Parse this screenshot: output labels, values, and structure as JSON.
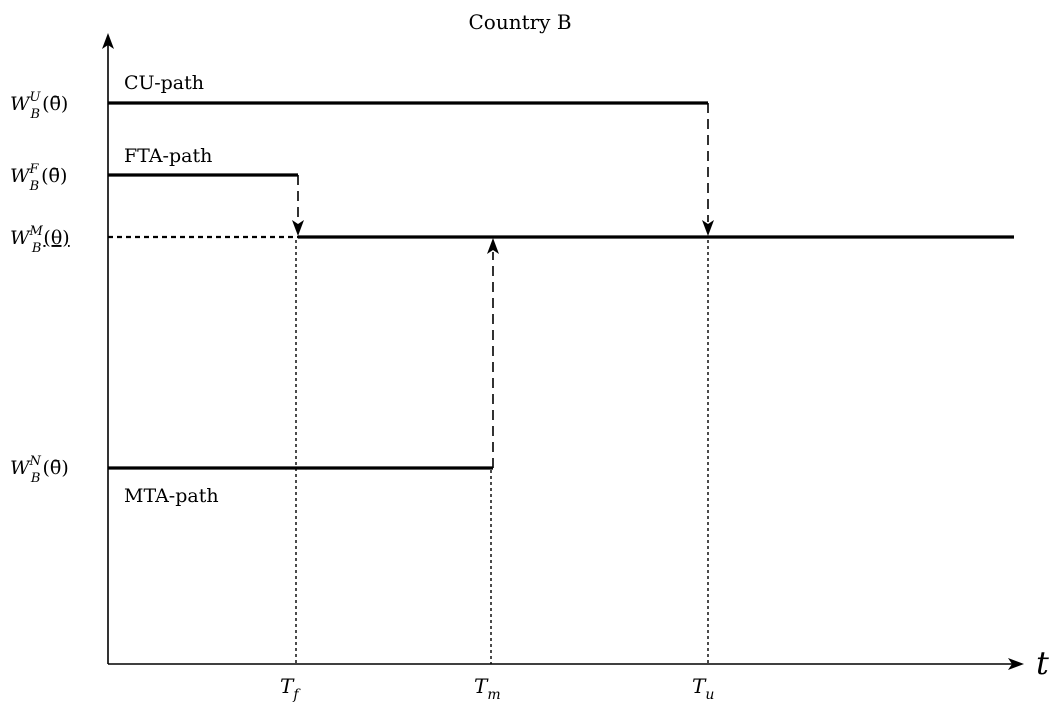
{
  "title": "Country B",
  "y_labels": [
    {
      "id": "u",
      "base": "W",
      "sub": "B",
      "sup": "U",
      "arg": "(θ̄)"
    },
    {
      "id": "f",
      "base": "W",
      "sub": "B",
      "sup": "F",
      "arg": "(θ̄)"
    },
    {
      "id": "m",
      "base": "W",
      "sub": "B",
      "sup": "M",
      "arg": "(θ)"
    },
    {
      "id": "n",
      "base": "W",
      "sub": "B",
      "sup": "N",
      "arg": "(θ̄)"
    }
  ],
  "paths": {
    "cu": "CU-path",
    "fta": "FTA-path",
    "mta": "MTA-path"
  },
  "x_ticks": [
    {
      "id": "f",
      "base": "T",
      "sub": "f"
    },
    {
      "id": "m",
      "base": "T",
      "sub": "m"
    },
    {
      "id": "u",
      "base": "T",
      "sub": "u"
    }
  ],
  "x_axis_label": "t"
}
